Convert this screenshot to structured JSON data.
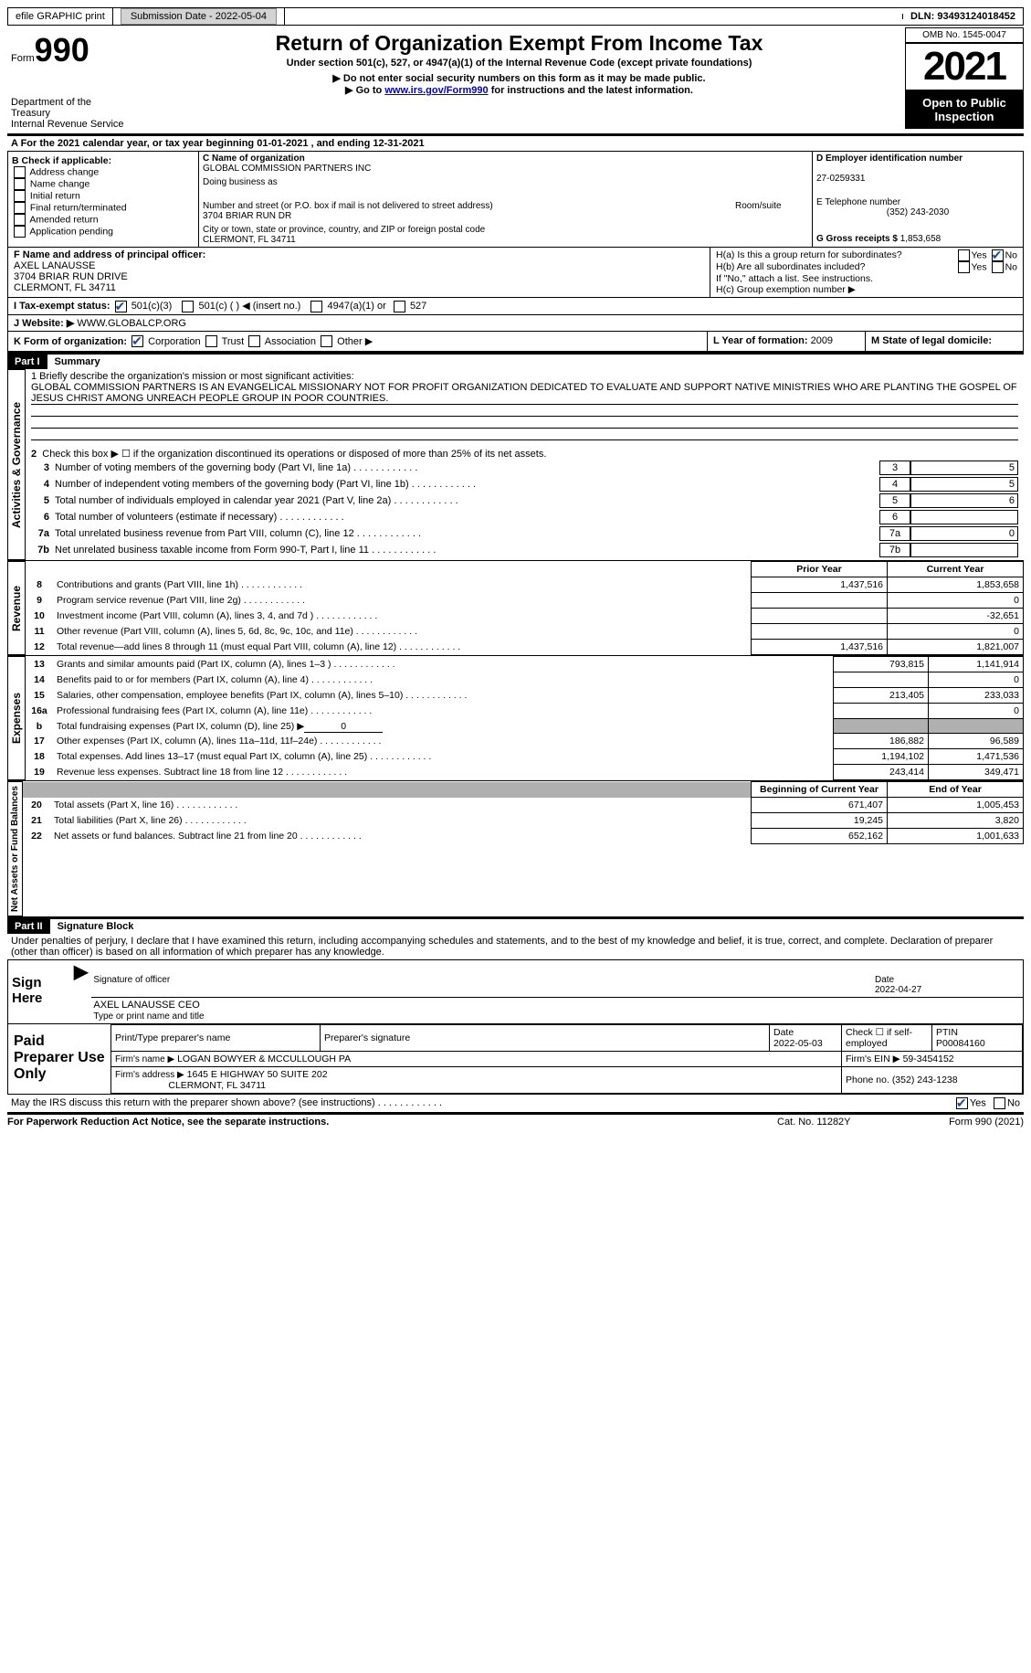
{
  "topbar": {
    "efile": "efile GRAPHIC print",
    "submission_label": "Submission Date - ",
    "submission_date": "2022-05-04",
    "dln_label": "DLN: ",
    "dln": "93493124018452"
  },
  "header": {
    "form_prefix": "Form",
    "form_number": "990",
    "dept": "Department of the Treasury\nInternal Revenue Service",
    "title": "Return of Organization Exempt From Income Tax",
    "subtitle": "Under section 501(c), 527, or 4947(a)(1) of the Internal Revenue Code (except private foundations)",
    "note1": "▶ Do not enter social security numbers on this form as it may be made public.",
    "note2_pre": "▶ Go to ",
    "note2_link": "www.irs.gov/Form990",
    "note2_post": " for instructions and the latest information.",
    "omb": "OMB No. 1545-0047",
    "year": "2021",
    "inspection": "Open to Public Inspection"
  },
  "periodA": {
    "text_pre": "A For the 2021 calendar year, or tax year beginning ",
    "begin": "01-01-2021",
    "mid": " , and ending ",
    "end": "12-31-2021"
  },
  "boxB": {
    "label": "B Check if applicable:",
    "items": [
      "Address change",
      "Name change",
      "Initial return",
      "Final return/terminated",
      "Amended return",
      "Application pending"
    ]
  },
  "boxC": {
    "name_label": "C Name of organization",
    "name": "GLOBAL COMMISSION PARTNERS INC",
    "dba_label": "Doing business as",
    "dba": "",
    "street_label": "Number and street (or P.O. box if mail is not delivered to street address)",
    "room_label": "Room/suite",
    "street": "3704 BRIAR RUN DR",
    "city_label": "City or town, state or province, country, and ZIP or foreign postal code",
    "city": "CLERMONT, FL  34711"
  },
  "boxD": {
    "label": "D Employer identification number",
    "value": "27-0259331"
  },
  "boxE": {
    "label": "E Telephone number",
    "value": "(352) 243-2030"
  },
  "boxG": {
    "label": "G Gross receipts $",
    "value": "1,853,658"
  },
  "boxF": {
    "label": "F  Name and address of principal officer:",
    "name": "AXEL LANAUSSE",
    "addr1": "3704 BRIAR RUN DRIVE",
    "addr2": "CLERMONT, FL  34711"
  },
  "boxH": {
    "a": "H(a)  Is this a group return for subordinates?",
    "b": "H(b)  Are all subordinates included?",
    "b_note": "If \"No,\" attach a list. See instructions.",
    "c": "H(c)  Group exemption number ▶",
    "yes": "Yes",
    "no": "No"
  },
  "boxI": {
    "label": "I   Tax-exempt status:",
    "opt1": "501(c)(3)",
    "opt2": "501(c) (   ) ◀ (insert no.)",
    "opt3": "4947(a)(1) or",
    "opt4": "527"
  },
  "boxJ": {
    "label": "J   Website: ▶",
    "value": "WWW.GLOBALCP.ORG"
  },
  "boxK": {
    "label": "K Form of organization:",
    "opts": [
      "Corporation",
      "Trust",
      "Association",
      "Other ▶"
    ]
  },
  "boxL": {
    "label": "L Year of formation:",
    "value": "2009"
  },
  "boxM": {
    "label": "M State of legal domicile:",
    "value": ""
  },
  "part1": {
    "header": "Part I",
    "title": "Summary",
    "line1_label": "1  Briefly describe the organization's mission or most significant activities:",
    "line1_text": "GLOBAL COMMISSION PARTNERS IS AN EVANGELICAL MISSIONARY NOT FOR PROFIT ORGANIZATION DEDICATED TO EVALUATE AND SUPPORT NATIVE MINISTRIES WHO ARE PLANTING THE GOSPEL OF JESUS CHRIST AMONG UNREACH PEOPLE GROUP IN POOR COUNTRIES.",
    "line2": "Check this box ▶ ☐ if the organization discontinued its operations or disposed of more than 25% of its net assets.",
    "governance_side": "Activities & Governance",
    "revenue_side": "Revenue",
    "expenses_side": "Expenses",
    "netassets_side": "Net Assets or Fund Balances",
    "lines": {
      "3": {
        "t": "Number of voting members of the governing body (Part VI, line 1a)",
        "box": "3",
        "v": "5"
      },
      "4": {
        "t": "Number of independent voting members of the governing body (Part VI, line 1b)",
        "box": "4",
        "v": "5"
      },
      "5": {
        "t": "Total number of individuals employed in calendar year 2021 (Part V, line 2a)",
        "box": "5",
        "v": "6"
      },
      "6": {
        "t": "Total number of volunteers (estimate if necessary)",
        "box": "6",
        "v": ""
      },
      "7a": {
        "t": "Total unrelated business revenue from Part VIII, column (C), line 12",
        "box": "7a",
        "v": "0"
      },
      "7b": {
        "t": "Net unrelated business taxable income from Form 990-T, Part I, line 11",
        "box": "7b",
        "v": ""
      }
    },
    "cols": {
      "prior": "Prior Year",
      "current": "Current Year",
      "begin": "Beginning of Current Year",
      "end": "End of Year"
    },
    "rev": [
      {
        "n": "8",
        "t": "Contributions and grants (Part VIII, line 1h)",
        "p": "1,437,516",
        "c": "1,853,658"
      },
      {
        "n": "9",
        "t": "Program service revenue (Part VIII, line 2g)",
        "p": "",
        "c": "0"
      },
      {
        "n": "10",
        "t": "Investment income (Part VIII, column (A), lines 3, 4, and 7d )",
        "p": "",
        "c": "-32,651"
      },
      {
        "n": "11",
        "t": "Other revenue (Part VIII, column (A), lines 5, 6d, 8c, 9c, 10c, and 11e)",
        "p": "",
        "c": "0"
      },
      {
        "n": "12",
        "t": "Total revenue—add lines 8 through 11 (must equal Part VIII, column (A), line 12)",
        "p": "1,437,516",
        "c": "1,821,007"
      }
    ],
    "exp": [
      {
        "n": "13",
        "t": "Grants and similar amounts paid (Part IX, column (A), lines 1–3 )",
        "p": "793,815",
        "c": "1,141,914"
      },
      {
        "n": "14",
        "t": "Benefits paid to or for members (Part IX, column (A), line 4)",
        "p": "",
        "c": "0"
      },
      {
        "n": "15",
        "t": "Salaries, other compensation, employee benefits (Part IX, column (A), lines 5–10)",
        "p": "213,405",
        "c": "233,033"
      },
      {
        "n": "16a",
        "t": "Professional fundraising fees (Part IX, column (A), line 11e)",
        "p": "",
        "c": "0"
      },
      {
        "n": "b",
        "t": "Total fundraising expenses (Part IX, column (D), line 25) ▶",
        "v": "0",
        "gray": true
      },
      {
        "n": "17",
        "t": "Other expenses (Part IX, column (A), lines 11a–11d, 11f–24e)",
        "p": "186,882",
        "c": "96,589"
      },
      {
        "n": "18",
        "t": "Total expenses. Add lines 13–17 (must equal Part IX, column (A), line 25)",
        "p": "1,194,102",
        "c": "1,471,536"
      },
      {
        "n": "19",
        "t": "Revenue less expenses. Subtract line 18 from line 12",
        "p": "243,414",
        "c": "349,471"
      }
    ],
    "net": [
      {
        "n": "20",
        "t": "Total assets (Part X, line 16)",
        "p": "671,407",
        "c": "1,005,453"
      },
      {
        "n": "21",
        "t": "Total liabilities (Part X, line 26)",
        "p": "19,245",
        "c": "3,820"
      },
      {
        "n": "22",
        "t": "Net assets or fund balances. Subtract line 21 from line 20",
        "p": "652,162",
        "c": "1,001,633"
      }
    ]
  },
  "part2": {
    "header": "Part II",
    "title": "Signature Block",
    "perjury": "Under penalties of perjury, I declare that I have examined this return, including accompanying schedules and statements, and to the best of my knowledge and belief, it is true, correct, and complete. Declaration of preparer (other than officer) is based on all information of which preparer has any knowledge.",
    "sign_here": "Sign Here",
    "sig_officer": "Signature of officer",
    "sig_date": "Date",
    "sig_date_val": "2022-04-27",
    "sig_name_label": "Type or print name and title",
    "sig_name": "AXEL LANAUSSE  CEO",
    "paid": "Paid Preparer Use Only",
    "prep_name_label": "Print/Type preparer's name",
    "prep_sig_label": "Preparer's signature",
    "prep_date_label": "Date",
    "prep_date": "2022-05-03",
    "prep_check": "Check ☐ if self-employed",
    "ptin_label": "PTIN",
    "ptin": "P00084160",
    "firm_name_label": "Firm's name      ▶",
    "firm_name": "LOGAN BOWYER & MCCULLOUGH PA",
    "firm_ein_label": "Firm's EIN ▶",
    "firm_ein": "59-3454152",
    "firm_addr_label": "Firm's address ▶",
    "firm_addr1": "1645 E HIGHWAY 50 SUITE 202",
    "firm_addr2": "CLERMONT, FL  34711",
    "phone_label": "Phone no.",
    "phone": "(352) 243-1238",
    "may_irs": "May the IRS discuss this return with the preparer shown above? (see instructions)",
    "yes": "Yes",
    "no": "No"
  },
  "footer": {
    "left": "For Paperwork Reduction Act Notice, see the separate instructions.",
    "mid": "Cat. No. 11282Y",
    "right": "Form 990 (2021)"
  }
}
